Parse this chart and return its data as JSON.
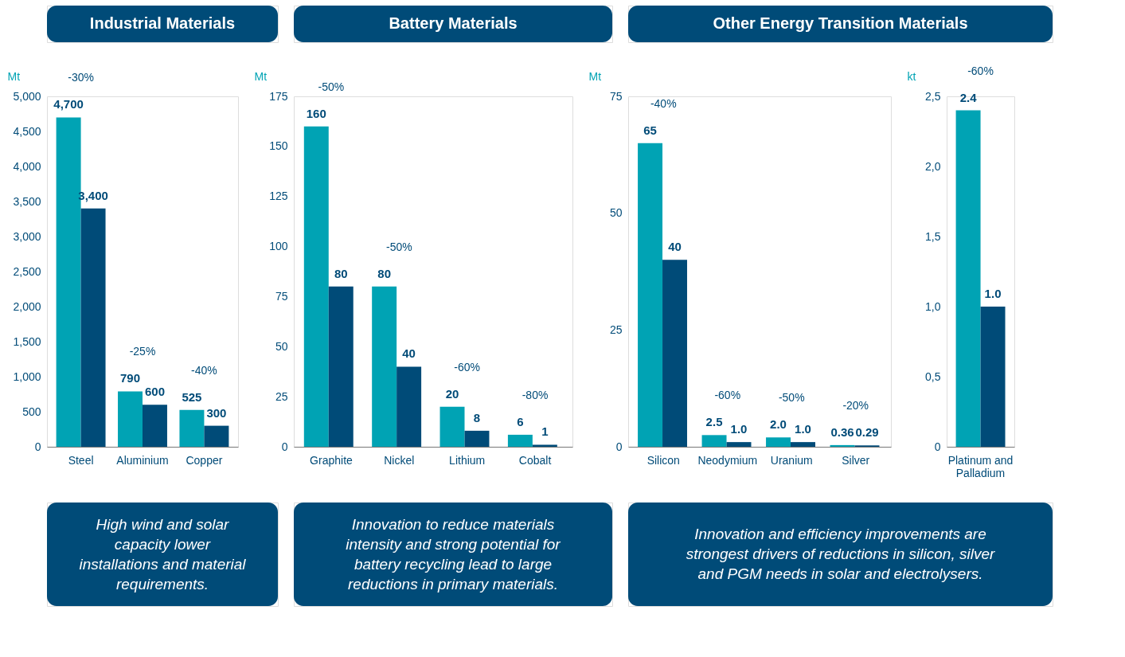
{
  "chart_data": [
    {
      "type": "bar",
      "title": "Industrial Materials",
      "ylabel": "Mt",
      "categories": [
        "Steel",
        "Aluminium",
        "Copper"
      ],
      "series": [
        {
          "color": "#00a3b4",
          "values": [
            4700,
            790,
            525
          ],
          "value_labels": [
            "4,700",
            "790",
            "525"
          ]
        },
        {
          "color": "#004b78",
          "values": [
            3400,
            600,
            300
          ],
          "value_labels": [
            "3,400",
            "600",
            "300"
          ]
        }
      ],
      "ylim": [
        0,
        5000
      ],
      "yticks": [
        0,
        500,
        {
          "value": 1000,
          "label": "1,000"
        },
        {
          "value": 1500,
          "label": "1,500"
        },
        {
          "value": 2000,
          "label": "2,000"
        },
        {
          "value": 2500,
          "label": "2,500"
        },
        {
          "value": 3000,
          "label": "3,000"
        },
        {
          "value": 3500,
          "label": "3,500"
        },
        {
          "value": 4000,
          "label": "4,000"
        },
        {
          "value": 4500,
          "label": "4,500"
        },
        {
          "value": 5000,
          "label": "5,000"
        }
      ],
      "annotations": [
        "-30%",
        "-25%",
        "-40%",
        "High wind and solar capacity lower installations and material requirements."
      ]
    },
    {
      "type": "bar",
      "title": "Battery Materials",
      "ylabel": "Mt",
      "categories": [
        "Graphite",
        "Nickel",
        "Lithium",
        "Cobalt"
      ],
      "series": [
        {
          "color": "#00a3b4",
          "values": [
            160,
            80,
            20,
            6
          ],
          "value_labels": [
            "160",
            "80",
            "20",
            "6"
          ]
        },
        {
          "color": "#004b78",
          "values": [
            80,
            40,
            8,
            1
          ],
          "value_labels": [
            "80",
            "40",
            "8",
            "1"
          ]
        }
      ],
      "ylim": [
        0,
        175
      ],
      "yticks": [
        0,
        25,
        50,
        75,
        100,
        125,
        150,
        175
      ],
      "annotations": [
        "-50%",
        "-50%",
        "-60%",
        "-80%",
        "Innovation to reduce materials intensity and strong potential for battery recycling lead to large reductions in primary materials."
      ]
    },
    {
      "type": "bar",
      "title": "Other Energy Transition Materials",
      "ylabel": "Mt",
      "categories": [
        "Silicon",
        "Neodymium",
        "Uranium",
        "Silver"
      ],
      "series": [
        {
          "color": "#00a3b4",
          "values": [
            65,
            2.5,
            2.0,
            0.36
          ],
          "value_labels": [
            "65",
            "2.5",
            "2.0",
            "0.36"
          ]
        },
        {
          "color": "#004b78",
          "values": [
            40,
            1.0,
            1.0,
            0.29
          ],
          "value_labels": [
            "40",
            "1.0",
            "1.0",
            "0.29"
          ]
        }
      ],
      "ylim": [
        0,
        75
      ],
      "yticks": [
        0,
        25,
        50,
        75
      ],
      "annotations": [
        "-40%",
        "-60%",
        "-50%",
        "-20%",
        "Innovation and efficiency improvements are strongest drivers of reductions in silicon, silver and PGM needs in solar and electrolysers."
      ]
    },
    {
      "type": "bar",
      "ylabel": "kt",
      "categories": [
        "Platinum and Palladium"
      ],
      "series": [
        {
          "color": "#00a3b4",
          "values": [
            2.4
          ],
          "value_labels": [
            "2.4"
          ]
        },
        {
          "color": "#004b78",
          "values": [
            1.0
          ],
          "value_labels": [
            "1.0"
          ]
        }
      ],
      "ylim": [
        0,
        2.5
      ],
      "yticks": [
        0,
        {
          "value": 0.5,
          "label": "0,5"
        },
        {
          "value": 1.0,
          "label": "1,0"
        },
        {
          "value": 1.5,
          "label": "1,5"
        },
        {
          "value": 2.0,
          "label": "2,0"
        },
        {
          "value": 2.5,
          "label": "2,5"
        }
      ],
      "annotations": [
        "-60%"
      ]
    }
  ]
}
